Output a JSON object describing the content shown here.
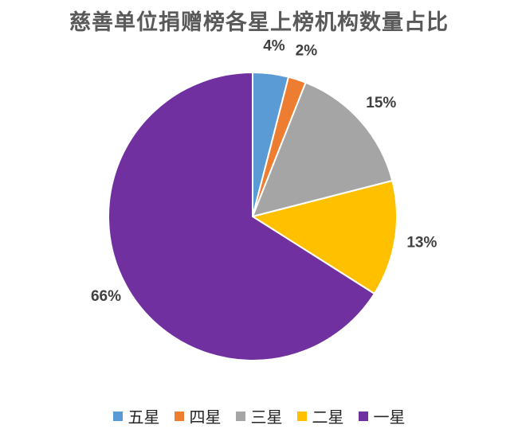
{
  "chart_data": {
    "type": "pie",
    "title": "慈善单位捐赠榜各星上榜机构数量占比",
    "slices": [
      {
        "name": "五星",
        "value": 4,
        "label": "4%",
        "color": "#5B9BD5"
      },
      {
        "name": "四星",
        "value": 2,
        "label": "2%",
        "color": "#ED7D31"
      },
      {
        "name": "三星",
        "value": 15,
        "label": "15%",
        "color": "#A5A5A5"
      },
      {
        "name": "二星",
        "value": 13,
        "label": "13%",
        "color": "#FFC000"
      },
      {
        "name": "一星",
        "value": 66,
        "label": "66%",
        "color": "#7030A0"
      }
    ],
    "legend_position": "bottom",
    "start_angle": "12 o'clock, clockwise"
  }
}
